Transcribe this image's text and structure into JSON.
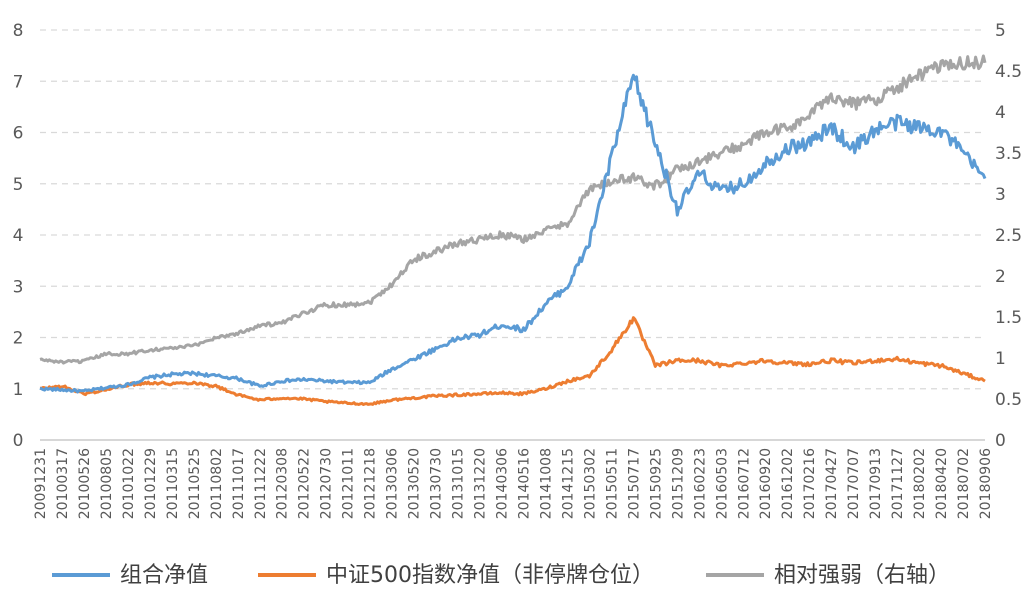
{
  "chart_data": {
    "type": "line",
    "title": "",
    "xlabel": "",
    "ylabel": "",
    "grid": true,
    "legend_position": "bottom",
    "x_tick_labels": [
      "20091231",
      "20100317",
      "20100526",
      "20100805",
      "20101022",
      "20101229",
      "20110315",
      "20110525",
      "20110802",
      "20111017",
      "20111222",
      "20120308",
      "20120522",
      "20120730",
      "20121011",
      "20121218",
      "20130306",
      "20130520",
      "20130730",
      "20131015",
      "20131220",
      "20140306",
      "20140516",
      "20141008",
      "20141215",
      "20150302",
      "20150511",
      "20150717",
      "20150925",
      "20151209",
      "20160223",
      "20160503",
      "20160712",
      "20160920",
      "20161202",
      "20170216",
      "20170427",
      "20170707",
      "20170913",
      "20171127",
      "20180202",
      "20180420",
      "20180702",
      "20180906"
    ],
    "y_left": {
      "range": [
        0,
        8
      ],
      "ticks": [
        "0",
        "1",
        "2",
        "3",
        "4",
        "5",
        "6",
        "7",
        "8"
      ]
    },
    "y_right": {
      "range": [
        0,
        5
      ],
      "ticks": [
        "0",
        "0.5",
        "1",
        "1.5",
        "2",
        "2.5",
        "3",
        "3.5",
        "4",
        "4.5",
        "5"
      ]
    },
    "series": [
      {
        "name": "组合净值",
        "axis": "left",
        "color": "#5B9BD5",
        "values": [
          1.0,
          0.98,
          0.95,
          1.02,
          1.08,
          1.22,
          1.28,
          1.3,
          1.25,
          1.2,
          1.05,
          1.15,
          1.18,
          1.15,
          1.12,
          1.12,
          1.38,
          1.58,
          1.78,
          1.98,
          2.05,
          2.25,
          2.15,
          2.65,
          3.0,
          3.85,
          5.5,
          7.1,
          5.8,
          4.5,
          5.2,
          4.85,
          5.0,
          5.4,
          5.7,
          5.8,
          6.1,
          5.7,
          6.05,
          6.2,
          6.1,
          6.05,
          5.6,
          5.1
        ]
      },
      {
        "name": "中证500指数净值（非停牌仓位）",
        "axis": "left",
        "color": "#ED7D31",
        "values": [
          1.0,
          1.05,
          0.9,
          0.98,
          1.08,
          1.12,
          1.1,
          1.12,
          1.05,
          0.88,
          0.78,
          0.82,
          0.8,
          0.75,
          0.72,
          0.7,
          0.78,
          0.82,
          0.86,
          0.88,
          0.9,
          0.92,
          0.9,
          1.0,
          1.15,
          1.25,
          1.75,
          2.38,
          1.45,
          1.55,
          1.55,
          1.45,
          1.5,
          1.55,
          1.5,
          1.48,
          1.55,
          1.5,
          1.55,
          1.58,
          1.5,
          1.45,
          1.3,
          1.15
        ]
      },
      {
        "name": "相对强弱（右轴）",
        "axis": "right",
        "color": "#A5A5A5",
        "values": [
          0.98,
          0.95,
          0.96,
          1.05,
          1.05,
          1.1,
          1.12,
          1.15,
          1.25,
          1.3,
          1.4,
          1.42,
          1.55,
          1.65,
          1.65,
          1.68,
          1.9,
          2.2,
          2.3,
          2.4,
          2.45,
          2.5,
          2.45,
          2.55,
          2.65,
          3.05,
          3.15,
          3.2,
          3.1,
          3.3,
          3.4,
          3.5,
          3.6,
          3.75,
          3.8,
          3.95,
          4.2,
          4.1,
          4.15,
          4.3,
          4.45,
          4.55,
          4.6,
          4.6
        ]
      }
    ]
  }
}
